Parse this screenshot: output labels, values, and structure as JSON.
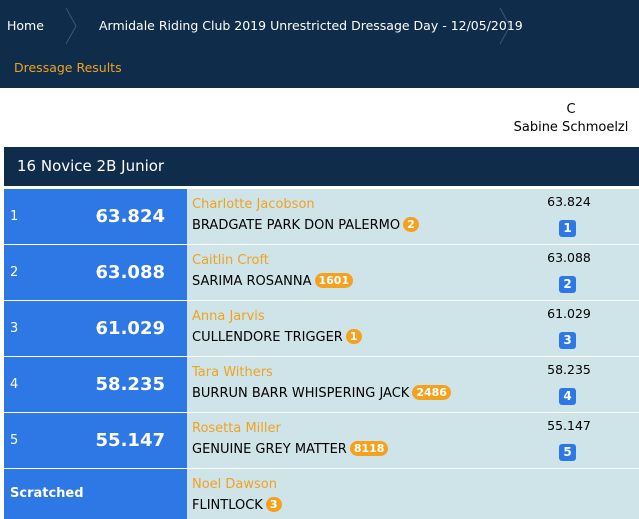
{
  "breadcrumb": {
    "home": "Home",
    "event": "Armidale Riding Club 2019 Unrestricted Dressage Day - 12/05/2019"
  },
  "subnav": {
    "active": "Dressage Results"
  },
  "judge": {
    "position": "C",
    "name": "Sabine Schmoelzl"
  },
  "class_title": "16 Novice 2B Junior",
  "results": [
    {
      "rank": "1",
      "total": "63.824",
      "rider": "Charlotte Jacobson",
      "horse": "BRADGATE PARK DON PALERMO",
      "horse_badge": "2",
      "judge_score": "63.824",
      "judge_place": "1"
    },
    {
      "rank": "2",
      "total": "63.088",
      "rider": "Caitlin Croft",
      "horse": "SARIMA ROSANNA",
      "horse_badge": "1601",
      "judge_score": "63.088",
      "judge_place": "2"
    },
    {
      "rank": "3",
      "total": "61.029",
      "rider": "Anna Jarvis",
      "horse": "CULLENDORE TRIGGER",
      "horse_badge": "1",
      "judge_score": "61.029",
      "judge_place": "3"
    },
    {
      "rank": "4",
      "total": "58.235",
      "rider": "Tara Withers",
      "horse": "BURRUN BARR WHISPERING JACK",
      "horse_badge": "2486",
      "judge_score": "58.235",
      "judge_place": "4"
    },
    {
      "rank": "5",
      "total": "55.147",
      "rider": "Rosetta Miller",
      "horse": "GENUINE GREY MATTER",
      "horse_badge": "8118",
      "judge_score": "55.147",
      "judge_place": "5"
    }
  ],
  "scratched": {
    "label": "Scratched",
    "rider": "Noel Dawson",
    "horse": "FLINTLOCK",
    "horse_badge": "3"
  },
  "colors": {
    "header_bg": "#0f2c4a",
    "accent_orange": "#f0a21f",
    "rank_blue": "#2e78e6",
    "row_bg": "#cfe4e8"
  }
}
